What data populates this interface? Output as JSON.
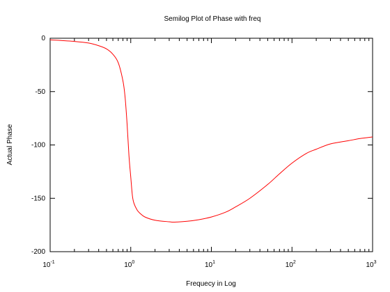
{
  "chart_data": {
    "type": "line",
    "title": "Semilog Plot of Phase with freq",
    "xlabel": "Frequecy in Log",
    "ylabel": "Actual Phase",
    "x_scale": "log",
    "xlim": [
      0.1,
      1000
    ],
    "ylim": [
      -200,
      0
    ],
    "x_ticks": [
      {
        "value": 0.1,
        "base": "10",
        "exp": "-1"
      },
      {
        "value": 1,
        "base": "10",
        "exp": "0"
      },
      {
        "value": 10,
        "base": "10",
        "exp": "1"
      },
      {
        "value": 100,
        "base": "10",
        "exp": "2"
      },
      {
        "value": 1000,
        "base": "10",
        "exp": "3"
      }
    ],
    "y_ticks": [
      {
        "value": 0,
        "label": "0"
      },
      {
        "value": -50,
        "label": "-50"
      },
      {
        "value": -100,
        "label": "-100"
      },
      {
        "value": -150,
        "label": "-150"
      },
      {
        "value": -200,
        "label": "-200"
      }
    ],
    "grid": false,
    "line_color": "#ff0000",
    "series": [
      {
        "x": [
          0.1,
          0.2,
          0.3,
          0.4,
          0.5,
          0.6,
          0.7,
          0.8,
          0.85,
          0.9,
          0.95,
          1.0,
          1.05,
          1.1,
          1.2,
          1.3,
          1.5,
          2,
          3,
          3.5,
          5,
          7,
          10,
          15,
          20,
          30,
          50,
          70,
          100,
          150,
          200,
          300,
          500,
          700,
          1000
        ],
        "y": [
          -1.5,
          -3,
          -4.5,
          -7,
          -10,
          -15,
          -23,
          -40,
          -55,
          -80,
          -110,
          -130,
          -148,
          -155,
          -161,
          -164,
          -167.5,
          -170.5,
          -172,
          -172.3,
          -171.5,
          -170,
          -167.5,
          -163,
          -158,
          -150,
          -137,
          -127,
          -117,
          -108,
          -104,
          -99,
          -96,
          -94,
          -92.5
        ]
      }
    ]
  }
}
